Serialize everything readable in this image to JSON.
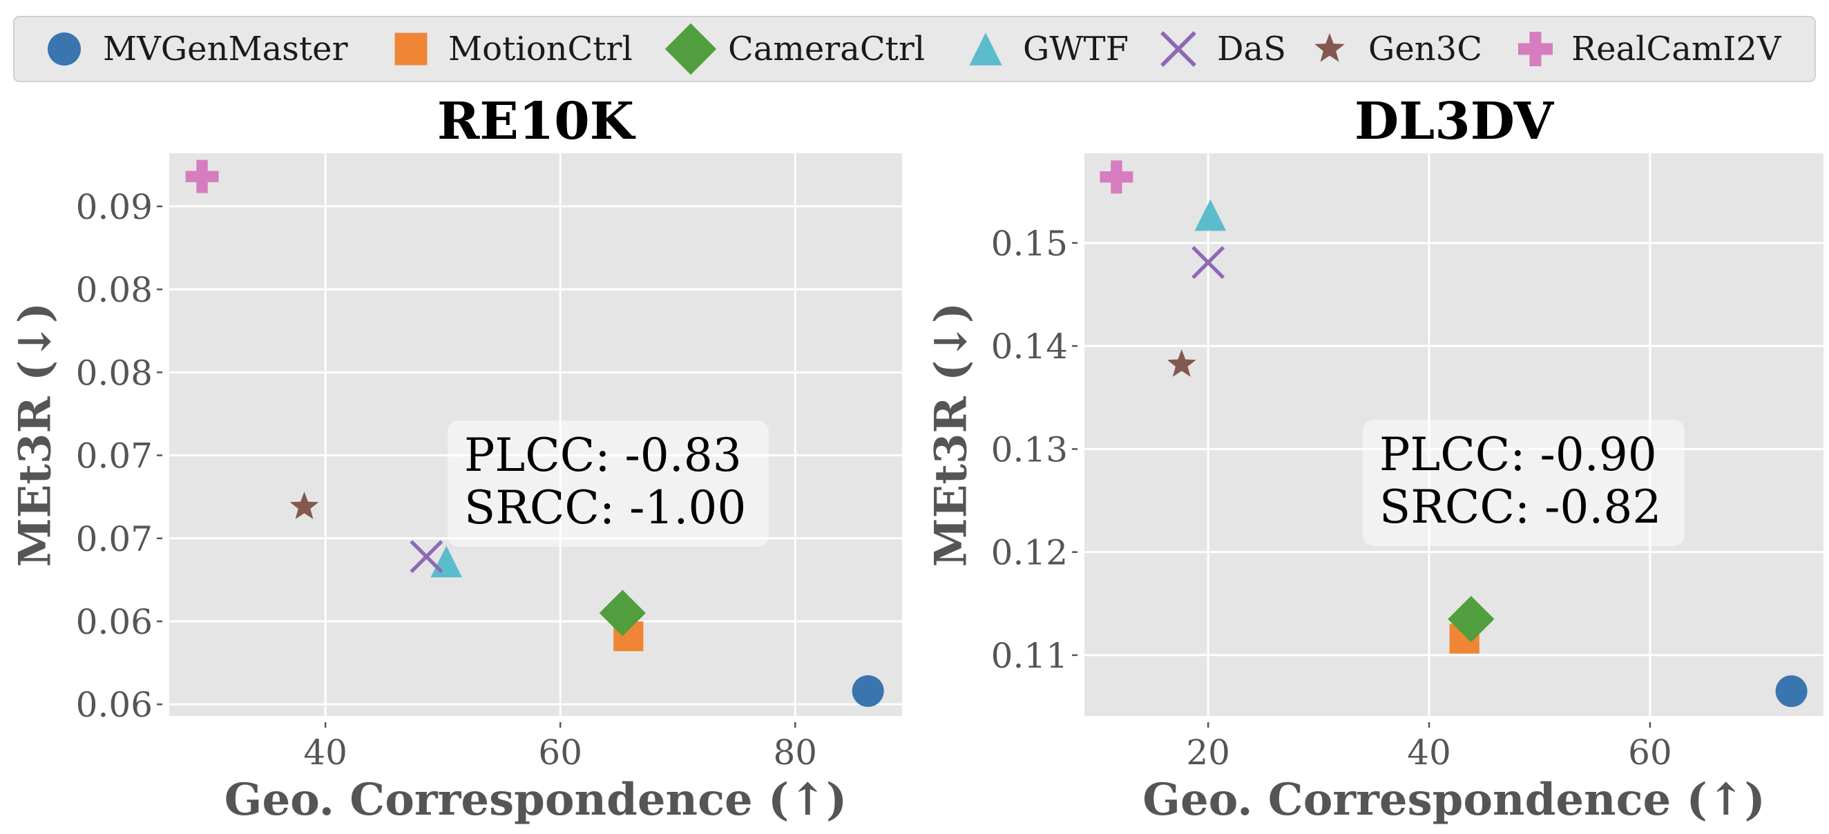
{
  "legend": {
    "items": [
      {
        "label": "MVGenMaster",
        "marker": "circle",
        "color": "#3b75af"
      },
      {
        "label": "MotionCtrl",
        "marker": "square",
        "color": "#ef8636"
      },
      {
        "label": "CameraCtrl",
        "marker": "diamond",
        "color": "#519e3e"
      },
      {
        "label": "GWTF",
        "marker": "triangle-up",
        "color": "#5bbccc"
      },
      {
        "label": "DaS",
        "marker": "x",
        "color": "#8d69b8"
      },
      {
        "label": "Gen3C",
        "marker": "star",
        "color": "#84584e"
      },
      {
        "label": "RealCamI2V",
        "marker": "plus",
        "color": "#d57dbe"
      }
    ]
  },
  "chart_data": [
    {
      "type": "scatter",
      "title": "RE10K",
      "xlabel": "Geo. Correspondence (↑)",
      "ylabel": "MEt3R (↓)",
      "xlim": [
        26.7,
        89.1
      ],
      "ylim": [
        0.0593,
        0.0932
      ],
      "xticks": [
        40,
        60,
        80
      ],
      "xtick_labels": [
        "40",
        "60",
        "80"
      ],
      "yticks": [
        0.06,
        0.065,
        0.07,
        0.075,
        0.08,
        0.085,
        0.09
      ],
      "ytick_labels": [
        "0.06",
        "0.06",
        "0.07",
        "0.07",
        "0.08",
        "0.08",
        "0.09"
      ],
      "grid": true,
      "annotation": {
        "lines": [
          "PLCC: -0.83",
          "SRCC: -1.00"
        ],
        "position": "center"
      },
      "series": [
        {
          "name": "MVGenMaster",
          "x": 86.2,
          "y": 0.0608
        },
        {
          "name": "MotionCtrl",
          "x": 65.8,
          "y": 0.0641
        },
        {
          "name": "CameraCtrl",
          "x": 65.3,
          "y": 0.0655
        },
        {
          "name": "GWTF",
          "x": 50.3,
          "y": 0.0686
        },
        {
          "name": "DaS",
          "x": 48.6,
          "y": 0.0689
        },
        {
          "name": "Gen3C",
          "x": 38.2,
          "y": 0.0719
        },
        {
          "name": "RealCamI2V",
          "x": 29.5,
          "y": 0.0918
        }
      ]
    },
    {
      "type": "scatter",
      "title": "DL3DV",
      "xlabel": "Geo. Correspondence (↑)",
      "ylabel": "MEt3R (↓)",
      "xlim": [
        8.8,
        75.7
      ],
      "ylim": [
        0.1041,
        0.1587
      ],
      "xticks": [
        20,
        40,
        60
      ],
      "xtick_labels": [
        "20",
        "40",
        "60"
      ],
      "yticks": [
        0.11,
        0.12,
        0.13,
        0.14,
        0.15
      ],
      "ytick_labels": [
        "0.11",
        "0.12",
        "0.13",
        "0.14",
        "0.15"
      ],
      "grid": true,
      "annotation": {
        "lines": [
          "PLCC: -0.90",
          "SRCC: -0.82"
        ],
        "position": "center"
      },
      "series": [
        {
          "name": "MVGenMaster",
          "x": 72.8,
          "y": 0.1065
        },
        {
          "name": "MotionCtrl",
          "x": 43.2,
          "y": 0.1116
        },
        {
          "name": "CameraCtrl",
          "x": 43.8,
          "y": 0.1135
        },
        {
          "name": "GWTF",
          "x": 20.2,
          "y": 0.1527
        },
        {
          "name": "DaS",
          "x": 20.0,
          "y": 0.1481
        },
        {
          "name": "Gen3C",
          "x": 17.6,
          "y": 0.1382
        },
        {
          "name": "RealCamI2V",
          "x": 11.7,
          "y": 0.1564
        }
      ]
    }
  ]
}
